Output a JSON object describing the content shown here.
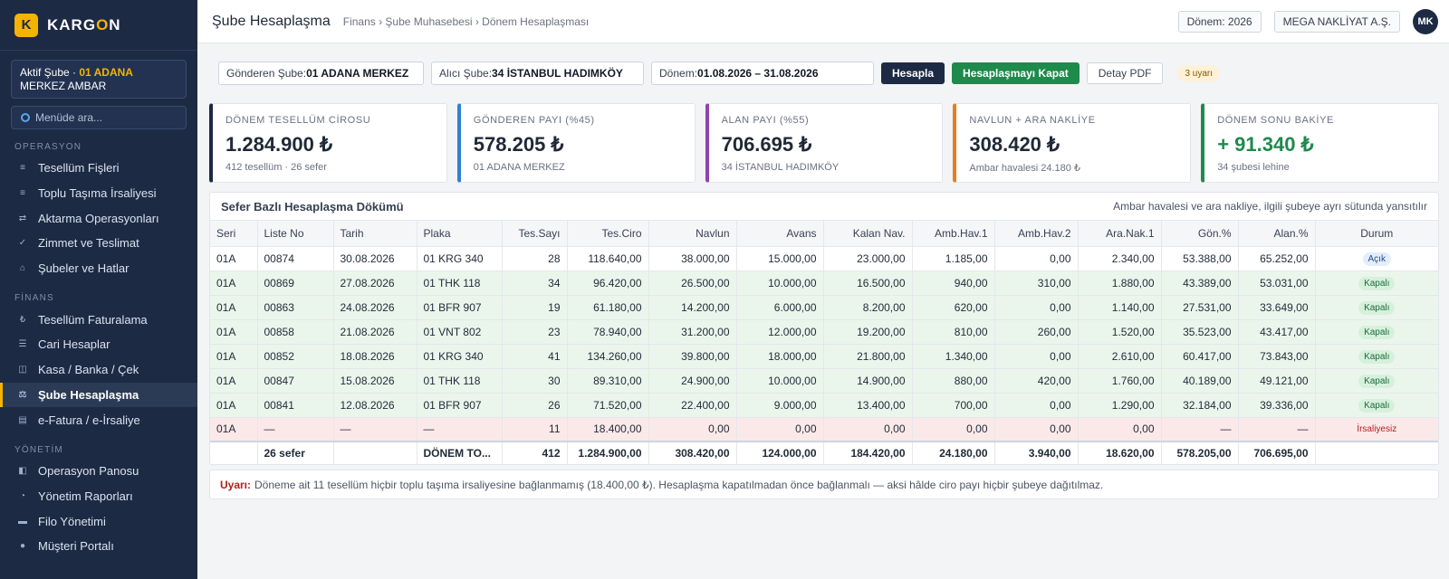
{
  "brand": {
    "logo_letter": "K",
    "name_part1": "KARG",
    "name_accent": "O",
    "name_part2": "N"
  },
  "active_branch": {
    "prefix": "Aktif Şube · ",
    "code": "01 ADANA",
    "rest": " MERKEZ AMBAR"
  },
  "menu_search": {
    "placeholder": "Menüde ara..."
  },
  "sidebar": {
    "sections": [
      {
        "title": "OPERASYON",
        "items": [
          {
            "label": "Tesellüm Fişleri",
            "icon": "list-icon"
          },
          {
            "label": "Toplu Taşıma İrsaliyesi",
            "icon": "list-icon"
          },
          {
            "label": "Aktarma Operasyonları",
            "icon": "transfer-icon"
          },
          {
            "label": "Zimmet ve Teslimat",
            "icon": "check-icon"
          },
          {
            "label": "Şubeler ve Hatlar",
            "icon": "home-icon"
          }
        ]
      },
      {
        "title": "FİNANS",
        "items": [
          {
            "label": "Tesellüm Faturalama",
            "icon": "lira-icon"
          },
          {
            "label": "Cari Hesaplar",
            "icon": "menu-icon"
          },
          {
            "label": "Kasa / Banka / Çek",
            "icon": "bank-icon"
          },
          {
            "label": "Şube Hesaplaşma",
            "icon": "scale-icon",
            "active": true
          },
          {
            "label": "e-Fatura / e-İrsaliye",
            "icon": "document-icon"
          }
        ]
      },
      {
        "title": "YÖNETİM",
        "items": [
          {
            "label": "Operasyon Panosu",
            "icon": "dashboard-icon"
          },
          {
            "label": "Yönetim Raporları",
            "icon": "chart-icon"
          },
          {
            "label": "Filo Yönetimi",
            "icon": "truck-icon"
          },
          {
            "label": "Müşteri Portalı",
            "icon": "globe-icon"
          }
        ]
      }
    ]
  },
  "header": {
    "title": "Şube Hesaplaşma",
    "breadcrumb": "Finans › Şube Muhasebesi › Dönem Hesaplaşması",
    "period_pill": "Dönem: 2026",
    "company_pill": "MEGA NAKLİYAT A.Ş.",
    "avatar": "MK"
  },
  "filters": {
    "sender_label": "Gönderen Şube:",
    "sender_value": "01 ADANA MERKEZ",
    "receiver_label": "Alıcı Şube:",
    "receiver_value": "34 İSTANBUL HADIMKÖY",
    "period_label": "Dönem:",
    "period_value": "01.08.2026 – 31.08.2026",
    "calc_button": "Hesapla",
    "close_button": "Hesaplaşmayı Kapat",
    "pdf_button": "Detay PDF",
    "warning_badge": "3 uyarı"
  },
  "kpis": [
    {
      "label": "DÖNEM TESELLÜM CİROSU",
      "value": "1.284.900 ₺",
      "sub": "412 tesellüm · 26 sefer",
      "accent": "#1c2a44",
      "value_color": "#1f2937"
    },
    {
      "label": "GÖNDEREN PAYI (%45)",
      "value": "578.205 ₺",
      "sub": "01 ADANA MERKEZ",
      "accent": "#2f7fd6",
      "value_color": "#1f2937"
    },
    {
      "label": "ALAN PAYI (%55)",
      "value": "706.695 ₺",
      "sub": "34 İSTANBUL HADIMKÖY",
      "accent": "#8e44ad",
      "value_color": "#1f2937"
    },
    {
      "label": "NAVLUN + ARA NAKLİYE",
      "value": "308.420 ₺",
      "sub": "Ambar havalesi 24.180 ₺",
      "accent": "#e67e22",
      "value_color": "#1f2937"
    },
    {
      "label": "DÖNEM SONU BAKİYE",
      "value": "+ 91.340 ₺",
      "sub": "34 şubesi lehine",
      "accent": "#1e8a4c",
      "value_color": "#1e8a4c"
    }
  ],
  "table": {
    "title": "Sefer Bazlı Hesaplaşma Dökümü",
    "note": "Ambar havalesi ve ara nakliye, ilgili şubeye ayrı sütunda yansıtılır",
    "columns": [
      "Seri",
      "Liste No",
      "Tarih",
      "Plaka",
      "Tes.Sayı",
      "Tes.Ciro",
      "Navlun",
      "Avans",
      "Kalan Nav.",
      "Amb.Hav.1",
      "Amb.Hav.2",
      "Ara.Nak.1",
      "Gön.%",
      "Alan.%",
      "Durum"
    ],
    "rows": [
      {
        "kind": "open",
        "cells": [
          "01A",
          "00874",
          "30.08.2026",
          "01 KRG 340",
          "28",
          "118.640,00",
          "38.000,00",
          "15.000,00",
          "23.000,00",
          "1.185,00",
          "0,00",
          "2.340,00",
          "53.388,00",
          "65.252,00",
          "Açık"
        ]
      },
      {
        "kind": "closed",
        "cells": [
          "01A",
          "00869",
          "27.08.2026",
          "01 THK 118",
          "34",
          "96.420,00",
          "26.500,00",
          "10.000,00",
          "16.500,00",
          "940,00",
          "310,00",
          "1.880,00",
          "43.389,00",
          "53.031,00",
          "Kapalı"
        ]
      },
      {
        "kind": "closed",
        "cells": [
          "01A",
          "00863",
          "24.08.2026",
          "01 BFR 907",
          "19",
          "61.180,00",
          "14.200,00",
          "6.000,00",
          "8.200,00",
          "620,00",
          "0,00",
          "1.140,00",
          "27.531,00",
          "33.649,00",
          "Kapalı"
        ]
      },
      {
        "kind": "closed",
        "cells": [
          "01A",
          "00858",
          "21.08.2026",
          "01 VNT 802",
          "23",
          "78.940,00",
          "31.200,00",
          "12.000,00",
          "19.200,00",
          "810,00",
          "260,00",
          "1.520,00",
          "35.523,00",
          "43.417,00",
          "Kapalı"
        ]
      },
      {
        "kind": "closed",
        "cells": [
          "01A",
          "00852",
          "18.08.2026",
          "01 KRG 340",
          "41",
          "134.260,00",
          "39.800,00",
          "18.000,00",
          "21.800,00",
          "1.340,00",
          "0,00",
          "2.610,00",
          "60.417,00",
          "73.843,00",
          "Kapalı"
        ]
      },
      {
        "kind": "closed",
        "cells": [
          "01A",
          "00847",
          "15.08.2026",
          "01 THK 118",
          "30",
          "89.310,00",
          "24.900,00",
          "10.000,00",
          "14.900,00",
          "880,00",
          "420,00",
          "1.760,00",
          "40.189,00",
          "49.121,00",
          "Kapalı"
        ]
      },
      {
        "kind": "closed",
        "cells": [
          "01A",
          "00841",
          "12.08.2026",
          "01 BFR 907",
          "26",
          "71.520,00",
          "22.400,00",
          "9.000,00",
          "13.400,00",
          "700,00",
          "0,00",
          "1.290,00",
          "32.184,00",
          "39.336,00",
          "Kapalı"
        ]
      },
      {
        "kind": "noirs",
        "cells": [
          "01A",
          "—",
          "—",
          "—",
          "11",
          "18.400,00",
          "0,00",
          "0,00",
          "0,00",
          "0,00",
          "0,00",
          "0,00",
          "—",
          "—",
          "İrsaliyesiz"
        ]
      }
    ],
    "total": [
      "",
      "26 sefer",
      "",
      "DÖNEM TO...",
      "412",
      "1.284.900,00",
      "308.420,00",
      "124.000,00",
      "184.420,00",
      "24.180,00",
      "3.940,00",
      "18.620,00",
      "578.205,00",
      "706.695,00",
      ""
    ]
  },
  "warning": {
    "label": "Uyarı:",
    "text": "Döneme ait 11 tesellüm hiçbir toplu taşıma irsaliyesine bağlanmamış (18.400,00 ₺). Hesaplaşma kapatılmadan önce bağlanmalı — aksi hâlde ciro payı hiçbir şubeye dağıtılmaz."
  }
}
